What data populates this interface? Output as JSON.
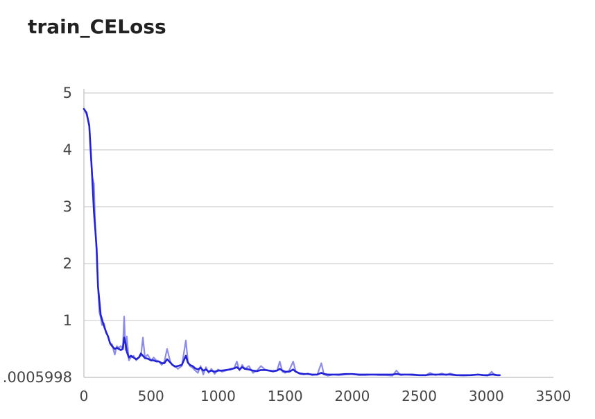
{
  "chart_data": {
    "type": "line",
    "title": "train_CELoss",
    "xlabel": "",
    "ylabel": "",
    "xlim": [
      0,
      3500
    ],
    "ylim": [
      0.0005998,
      5
    ],
    "x_ticks": [
      "0",
      "500",
      "1000",
      "1500",
      "2000",
      "2500",
      "3000",
      "3500"
    ],
    "y_ticks": [
      ".0005998",
      "1",
      "2",
      "3",
      "4",
      "5"
    ],
    "grid": true,
    "legend": "none",
    "colors": {
      "smoothed": "#2222d6",
      "raw": "#8c8ce8"
    },
    "series": [
      {
        "role": "raw",
        "x": [
          0,
          20,
          40,
          60,
          75,
          85,
          95,
          105,
          115,
          125,
          135,
          150,
          165,
          180,
          195,
          210,
          230,
          245,
          260,
          275,
          290,
          300,
          310,
          320,
          335,
          350,
          370,
          390,
          410,
          425,
          440,
          455,
          475,
          500,
          520,
          540,
          560,
          580,
          600,
          620,
          645,
          660,
          680,
          700,
          730,
          760,
          775,
          790,
          810,
          830,
          850,
          870,
          890,
          910,
          930,
          950,
          975,
          1000,
          1030,
          1060,
          1090,
          1120,
          1140,
          1160,
          1180,
          1200,
          1230,
          1260,
          1290,
          1320,
          1350,
          1380,
          1410,
          1440,
          1460,
          1480,
          1500,
          1530,
          1560,
          1580,
          1610,
          1640,
          1670,
          1700,
          1740,
          1770,
          1790,
          1820,
          1860,
          1900,
          1950,
          2000,
          2050,
          2100,
          2150,
          2200,
          2250,
          2300,
          2330,
          2360,
          2400,
          2450,
          2500,
          2550,
          2580,
          2620,
          2670,
          2700,
          2730,
          2780,
          2830,
          2880,
          2940,
          2980,
          3010,
          3040,
          3060,
          3080,
          3100
        ],
        "values": [
          4.72,
          4.62,
          4.45,
          3.55,
          3.4,
          2.6,
          2.2,
          1.6,
          1.15,
          1.05,
          0.92,
          0.95,
          0.78,
          0.72,
          0.6,
          0.58,
          0.4,
          0.55,
          0.52,
          0.55,
          0.5,
          1.07,
          0.48,
          0.72,
          0.3,
          0.35,
          0.38,
          0.3,
          0.35,
          0.38,
          0.7,
          0.35,
          0.4,
          0.3,
          0.35,
          0.3,
          0.28,
          0.22,
          0.28,
          0.5,
          0.27,
          0.22,
          0.2,
          0.15,
          0.2,
          0.65,
          0.28,
          0.2,
          0.17,
          0.12,
          0.08,
          0.2,
          0.05,
          0.18,
          0.08,
          0.15,
          0.06,
          0.14,
          0.1,
          0.12,
          0.15,
          0.16,
          0.28,
          0.12,
          0.22,
          0.15,
          0.2,
          0.08,
          0.12,
          0.2,
          0.14,
          0.12,
          0.1,
          0.12,
          0.28,
          0.1,
          0.08,
          0.12,
          0.28,
          0.1,
          0.06,
          0.05,
          0.07,
          0.04,
          0.05,
          0.25,
          0.05,
          0.03,
          0.05,
          0.04,
          0.05,
          0.06,
          0.04,
          0.04,
          0.05,
          0.04,
          0.04,
          0.03,
          0.12,
          0.04,
          0.05,
          0.04,
          0.04,
          0.04,
          0.08,
          0.04,
          0.07,
          0.04,
          0.07,
          0.04,
          0.03,
          0.04,
          0.05,
          0.04,
          0.03,
          0.1,
          0.04,
          0.04,
          0.04
        ]
      },
      {
        "role": "smoothed",
        "x": [
          0,
          20,
          40,
          60,
          75,
          85,
          95,
          105,
          115,
          125,
          135,
          150,
          165,
          180,
          195,
          210,
          230,
          245,
          260,
          275,
          290,
          300,
          310,
          320,
          335,
          350,
          370,
          390,
          410,
          425,
          440,
          455,
          475,
          500,
          520,
          540,
          560,
          580,
          600,
          620,
          645,
          660,
          680,
          700,
          730,
          760,
          775,
          790,
          810,
          830,
          850,
          870,
          890,
          910,
          930,
          950,
          975,
          1000,
          1030,
          1060,
          1090,
          1120,
          1140,
          1160,
          1180,
          1200,
          1230,
          1260,
          1290,
          1320,
          1350,
          1380,
          1410,
          1440,
          1460,
          1480,
          1500,
          1530,
          1560,
          1580,
          1610,
          1640,
          1670,
          1700,
          1740,
          1770,
          1790,
          1820,
          1860,
          1900,
          1950,
          2000,
          2050,
          2100,
          2150,
          2200,
          2250,
          2300,
          2330,
          2360,
          2400,
          2450,
          2500,
          2550,
          2580,
          2620,
          2670,
          2700,
          2730,
          2780,
          2830,
          2880,
          2940,
          2980,
          3010,
          3040,
          3060,
          3080,
          3100
        ],
        "values": [
          4.72,
          4.65,
          4.42,
          3.6,
          2.9,
          2.6,
          2.25,
          1.6,
          1.35,
          1.1,
          1.02,
          0.9,
          0.8,
          0.72,
          0.6,
          0.55,
          0.5,
          0.52,
          0.5,
          0.48,
          0.5,
          0.7,
          0.6,
          0.45,
          0.35,
          0.38,
          0.35,
          0.32,
          0.35,
          0.42,
          0.38,
          0.34,
          0.33,
          0.3,
          0.3,
          0.28,
          0.28,
          0.25,
          0.25,
          0.32,
          0.26,
          0.22,
          0.19,
          0.2,
          0.22,
          0.38,
          0.26,
          0.22,
          0.2,
          0.16,
          0.14,
          0.17,
          0.12,
          0.14,
          0.1,
          0.12,
          0.1,
          0.12,
          0.12,
          0.13,
          0.14,
          0.16,
          0.18,
          0.14,
          0.18,
          0.15,
          0.14,
          0.12,
          0.11,
          0.13,
          0.13,
          0.12,
          0.11,
          0.12,
          0.15,
          0.12,
          0.1,
          0.1,
          0.14,
          0.1,
          0.07,
          0.06,
          0.06,
          0.05,
          0.05,
          0.08,
          0.06,
          0.05,
          0.05,
          0.05,
          0.06,
          0.06,
          0.05,
          0.05,
          0.05,
          0.05,
          0.05,
          0.05,
          0.06,
          0.05,
          0.05,
          0.05,
          0.04,
          0.04,
          0.05,
          0.05,
          0.05,
          0.05,
          0.05,
          0.04,
          0.04,
          0.04,
          0.05,
          0.04,
          0.04,
          0.05,
          0.05,
          0.04,
          0.04
        ]
      }
    ]
  }
}
